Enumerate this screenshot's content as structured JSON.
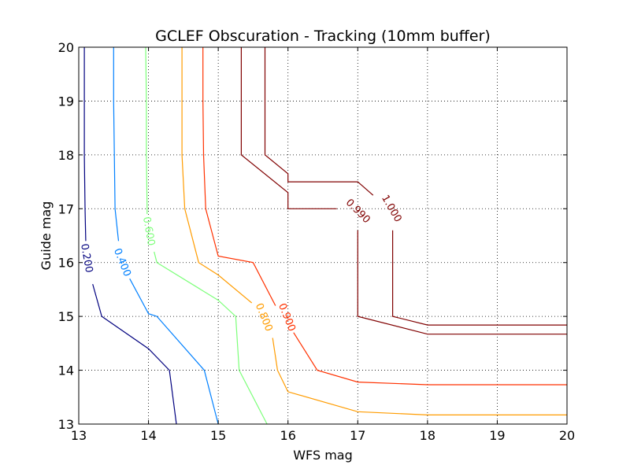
{
  "chart_data": {
    "type": "contour",
    "title": "GCLEF Obscuration - Tracking (10mm buffer)",
    "xlabel": "WFS mag",
    "ylabel": "Guide mag",
    "xlim": [
      13,
      20
    ],
    "ylim": [
      13,
      20
    ],
    "xticks": [
      "13",
      "14",
      "15",
      "16",
      "17",
      "18",
      "19",
      "20"
    ],
    "yticks": [
      "13",
      "14",
      "15",
      "16",
      "17",
      "18",
      "19",
      "20"
    ],
    "grid": true,
    "grid_style": "dotted",
    "levels": [
      {
        "value": 0.2,
        "label": "0.200",
        "color": "#00007f",
        "label_at": [
          13.11,
          16.08
        ],
        "label_angle": 80,
        "segments": [
          [
            [
              13.08,
              20.0
            ],
            [
              13.08,
              19.0
            ],
            [
              13.08,
              18.0
            ],
            [
              13.09,
              17.0
            ],
            [
              13.1,
              16.4
            ]
          ],
          [
            [
              13.2,
              15.6
            ],
            [
              13.33,
              15.0
            ],
            [
              14.0,
              14.4
            ],
            [
              14.3,
              14.0
            ],
            [
              14.4,
              13.0
            ]
          ]
        ]
      },
      {
        "value": 0.4,
        "label": "0.400",
        "color": "#0080ff",
        "label_at": [
          13.62,
          16.0
        ],
        "label_angle": 68,
        "segments": [
          [
            [
              13.5,
              20.0
            ],
            [
              13.5,
              19.0
            ],
            [
              13.51,
              18.0
            ],
            [
              13.52,
              17.0
            ],
            [
              13.57,
              16.4
            ]
          ],
          [
            [
              13.73,
              15.7
            ],
            [
              14.0,
              15.05
            ],
            [
              14.12,
              15.0
            ],
            [
              14.8,
              14.0
            ],
            [
              15.0,
              13.0
            ]
          ]
        ]
      },
      {
        "value": 0.6,
        "label": "0.600",
        "color": "#7cff79",
        "label_at": [
          14.0,
          16.58
        ],
        "label_angle": 80,
        "segments": [
          [
            [
              13.96,
              20.0
            ],
            [
              13.97,
              19.0
            ],
            [
              13.97,
              18.0
            ],
            [
              13.98,
              17.0
            ],
            [
              13.98,
              16.9
            ]
          ],
          [
            [
              14.08,
              16.2
            ],
            [
              14.12,
              16.0
            ],
            [
              15.0,
              15.3
            ],
            [
              15.25,
              15.0
            ],
            [
              15.3,
              14.0
            ],
            [
              15.7,
              13.0
            ]
          ]
        ]
      },
      {
        "value": 0.8,
        "label": "0.800",
        "color": "#ff9c00",
        "label_at": [
          15.65,
          14.98
        ],
        "label_angle": 68,
        "segments": [
          [
            [
              14.48,
              20.0
            ],
            [
              14.48,
              19.0
            ],
            [
              14.48,
              18.0
            ],
            [
              14.52,
              17.0
            ],
            [
              14.72,
              16.0
            ],
            [
              15.0,
              15.77
            ],
            [
              15.48,
              15.25
            ]
          ],
          [
            [
              15.78,
              14.6
            ],
            [
              15.85,
              14.0
            ],
            [
              16.0,
              13.6
            ],
            [
              17.0,
              13.23
            ],
            [
              18.0,
              13.17
            ],
            [
              20.0,
              13.17
            ]
          ]
        ]
      },
      {
        "value": 0.9,
        "label": "0.900",
        "color": "#ff3100",
        "label_at": [
          15.98,
          14.98
        ],
        "label_angle": 68,
        "segments": [
          [
            [
              14.78,
              20.0
            ],
            [
              14.78,
              19.0
            ],
            [
              14.79,
              18.0
            ],
            [
              14.82,
              17.0
            ],
            [
              15.0,
              16.12
            ],
            [
              15.5,
              16.0
            ],
            [
              15.82,
              15.2
            ]
          ],
          [
            [
              16.08,
              14.7
            ],
            [
              16.42,
              14.0
            ],
            [
              17.0,
              13.78
            ],
            [
              18.0,
              13.73
            ],
            [
              20.0,
              13.73
            ]
          ]
        ]
      },
      {
        "value": 0.99,
        "label": "0.990",
        "color": "#800000",
        "label_at": [
          17.0,
          16.95
        ],
        "label_angle": 45,
        "segments": [
          [
            [
              15.33,
              20.0
            ],
            [
              15.33,
              19.0
            ],
            [
              15.33,
              18.0
            ],
            [
              16.0,
              17.3
            ],
            [
              16.0,
              17.0
            ],
            [
              16.7,
              17.0
            ]
          ],
          [
            [
              17.0,
              16.6
            ],
            [
              17.0,
              16.0
            ],
            [
              17.0,
              15.0
            ],
            [
              18.0,
              14.67
            ],
            [
              20.0,
              14.67
            ]
          ]
        ]
      },
      {
        "value": 1.0,
        "label": "1.000",
        "color": "#800000",
        "label_at": [
          17.48,
          17.0
        ],
        "label_angle": 60,
        "segments": [
          [
            [
              15.67,
              20.0
            ],
            [
              15.67,
              19.0
            ],
            [
              15.67,
              18.0
            ],
            [
              16.0,
              17.65
            ],
            [
              16.0,
              17.5
            ],
            [
              17.0,
              17.5
            ],
            [
              17.22,
              17.25
            ]
          ],
          [
            [
              17.5,
              16.6
            ],
            [
              17.5,
              16.0
            ],
            [
              17.5,
              15.0
            ],
            [
              18.0,
              14.84
            ],
            [
              20.0,
              14.84
            ]
          ]
        ]
      }
    ]
  }
}
